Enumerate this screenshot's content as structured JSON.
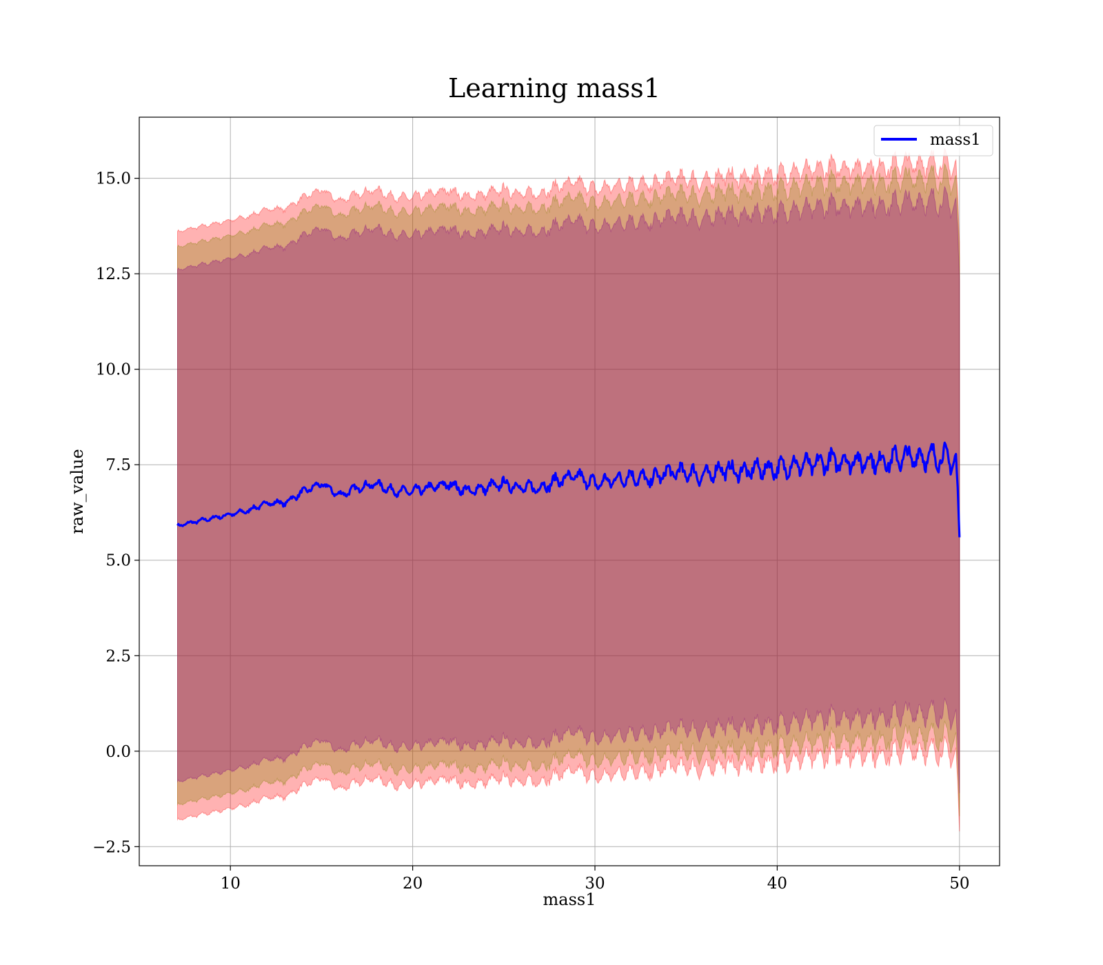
{
  "chart_data": {
    "type": "line",
    "title": "Learning mass1",
    "xlabel": "mass1",
    "ylabel": "raw_value",
    "xlim": [
      5.0,
      52.2
    ],
    "ylim": [
      -3.0,
      16.6
    ],
    "xticks": [
      10,
      20,
      30,
      40,
      50
    ],
    "yticks": [
      -2.5,
      0.0,
      2.5,
      5.0,
      7.5,
      10.0,
      12.5,
      15.0
    ],
    "xtick_labels": [
      "10",
      "20",
      "30",
      "40",
      "50"
    ],
    "ytick_labels": [
      "−2.5",
      "0.0",
      "2.5",
      "5.0",
      "7.5",
      "10.0",
      "12.5",
      "15.0"
    ],
    "grid": true,
    "legend_position": "top-right",
    "x_range": [
      7.1,
      50.0
    ],
    "bands": [
      {
        "color": "#ff0000",
        "opacity": 0.3,
        "upper_offset": 7.7,
        "lower_offset": -7.7
      },
      {
        "color": "#808000",
        "opacity": 0.3,
        "upper_offset": 7.3,
        "lower_offset": -7.3
      },
      {
        "color": "#800080",
        "opacity": 0.3,
        "upper_offset": 6.7,
        "lower_offset": -6.7
      }
    ],
    "series": [
      {
        "name": "mass1",
        "color": "#0000ff",
        "x": [
          7.1,
          8.0,
          9.0,
          10.0,
          11.0,
          12.0,
          13.0,
          14.0,
          15.0,
          16.0,
          17.0,
          18.0,
          19.0,
          20.0,
          21.0,
          22.0,
          23.0,
          24.0,
          25.0,
          26.0,
          27.0,
          28.0,
          29.0,
          30.0,
          31.0,
          32.0,
          33.0,
          34.0,
          35.0,
          36.0,
          37.0,
          38.0,
          39.0,
          40.0,
          41.0,
          42.0,
          43.0,
          44.0,
          45.0,
          46.0,
          47.0,
          48.0,
          49.0,
          49.8,
          50.0
        ],
        "y": [
          5.9,
          6.0,
          6.1,
          6.2,
          6.3,
          6.5,
          6.5,
          6.8,
          7.0,
          6.7,
          6.9,
          7.0,
          6.8,
          6.8,
          6.9,
          7.0,
          6.8,
          6.9,
          7.0,
          6.9,
          6.9,
          7.1,
          7.2,
          7.0,
          7.1,
          7.2,
          7.1,
          7.3,
          7.3,
          7.2,
          7.4,
          7.3,
          7.4,
          7.4,
          7.5,
          7.5,
          7.6,
          7.6,
          7.6,
          7.6,
          7.7,
          7.7,
          7.7,
          7.6,
          5.6
        ]
      }
    ]
  }
}
